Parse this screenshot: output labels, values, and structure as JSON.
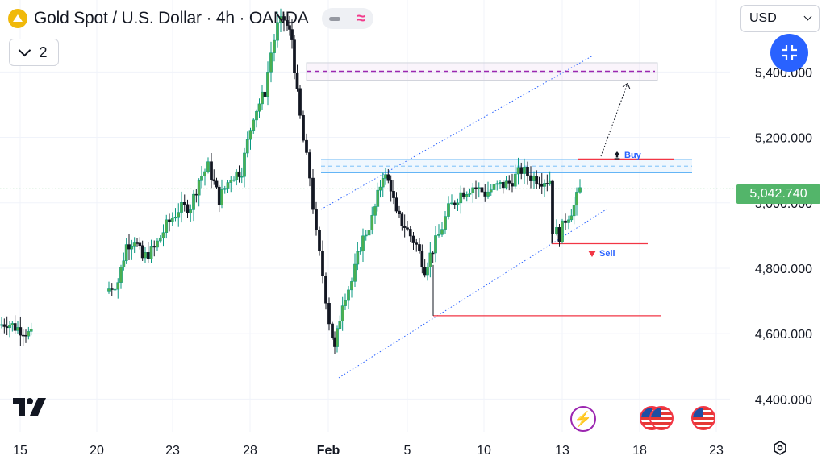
{
  "header": {
    "title": "Gold Spot / U.S. Dollar · 4h · OANDA",
    "indicator_count": "2"
  },
  "currency": {
    "selected": "USD"
  },
  "last_price_label": "5,042.740",
  "labels": {
    "buy": "Buy",
    "sell": "Sell"
  },
  "colors": {
    "up": "#089981",
    "down": "#131722",
    "accent": "#2962ff",
    "red": "#f23645",
    "purple": "#9c27b0",
    "last_price": "#53b56a"
  },
  "icons": [
    "gold-symbol-icon",
    "chevron-down-icon",
    "collapse-icon",
    "flash-icon",
    "us-flag-icon",
    "settings-icon",
    "tradingview-logo-icon"
  ],
  "chart_data": {
    "type": "candlestick",
    "ylim": [
      4300,
      5620
    ],
    "y_ticks": [
      {
        "value": 5400,
        "label": "5,400.000"
      },
      {
        "value": 5200,
        "label": "5,200.000"
      },
      {
        "value": 5000,
        "label": "5,000.000"
      },
      {
        "value": 4800,
        "label": "4,800.000"
      },
      {
        "value": 4600,
        "label": "4,600.000"
      },
      {
        "value": 4400,
        "label": "4,400.000"
      }
    ],
    "x_ticks": [
      {
        "label": "15",
        "x": 25
      },
      {
        "label": "20",
        "x": 120
      },
      {
        "label": "23",
        "x": 214
      },
      {
        "label": "28",
        "x": 310
      },
      {
        "label": "Feb",
        "x": 407,
        "bold": true
      },
      {
        "label": "5",
        "x": 505
      },
      {
        "label": "10",
        "x": 600
      },
      {
        "label": "13",
        "x": 697
      },
      {
        "label": "18",
        "x": 793
      },
      {
        "label": "23",
        "x": 888
      }
    ],
    "last_price": 5042.74,
    "anchors": [
      [
        135,
        4730
      ],
      [
        150,
        4760
      ],
      [
        160,
        4870
      ],
      [
        170,
        4890
      ],
      [
        180,
        4830
      ],
      [
        195,
        4860
      ],
      [
        210,
        4930
      ],
      [
        225,
        4980
      ],
      [
        240,
        4990
      ],
      [
        250,
        5070
      ],
      [
        262,
        5110
      ],
      [
        275,
        5010
      ],
      [
        290,
        5080
      ],
      [
        303,
        5100
      ],
      [
        318,
        5270
      ],
      [
        332,
        5340
      ],
      [
        340,
        5460
      ],
      [
        348,
        5540
      ],
      [
        356,
        5560
      ],
      [
        365,
        5500
      ],
      [
        372,
        5330
      ],
      [
        380,
        5190
      ],
      [
        388,
        5080
      ],
      [
        396,
        4900
      ],
      [
        404,
        4780
      ],
      [
        412,
        4640
      ],
      [
        418,
        4550
      ],
      [
        428,
        4700
      ],
      [
        440,
        4760
      ],
      [
        450,
        4870
      ],
      [
        465,
        4950
      ],
      [
        478,
        5090
      ],
      [
        488,
        5050
      ],
      [
        495,
        4960
      ],
      [
        505,
        4930
      ],
      [
        520,
        4870
      ],
      [
        530,
        4800
      ],
      [
        540,
        4860
      ],
      [
        548,
        4900
      ],
      [
        560,
        4980
      ],
      [
        575,
        5030
      ],
      [
        590,
        5050
      ],
      [
        605,
        5030
      ],
      [
        620,
        5050
      ],
      [
        635,
        5060
      ],
      [
        650,
        5100
      ],
      [
        662,
        5080
      ],
      [
        675,
        5070
      ],
      [
        685,
        5070
      ],
      [
        690,
        4920
      ],
      [
        697,
        4900
      ],
      [
        705,
        4950
      ],
      [
        715,
        4990
      ],
      [
        723,
        5040
      ]
    ],
    "left_cluster": [
      [
        2,
        4625
      ],
      [
        12,
        4635
      ],
      [
        22,
        4620
      ],
      [
        32,
        4610
      ],
      [
        42,
        4595
      ]
    ],
    "levels": [
      {
        "name": "target-dashed",
        "value": 5402,
        "x1": 380,
        "x2": 812,
        "color": "#9c27b0",
        "dash": "6 4"
      },
      {
        "name": "upper-band-top",
        "value": 5132,
        "x1": 398,
        "x2": 858,
        "color": "#64b5f6",
        "dash": ""
      },
      {
        "name": "upper-band-mid",
        "value": 5112,
        "x1": 398,
        "x2": 858,
        "color": "#90caf9",
        "dash": "5 4"
      },
      {
        "name": "upper-band-bot",
        "value": 5092,
        "x1": 398,
        "x2": 858,
        "color": "#64b5f6",
        "dash": ""
      },
      {
        "name": "buy-level",
        "value": 5134,
        "x1": 716,
        "x2": 836,
        "color": "#f23645",
        "dash": ""
      },
      {
        "name": "sell-level",
        "value": 4875,
        "x1": 684,
        "x2": 803,
        "color": "#f23645",
        "dash": ""
      },
      {
        "name": "low-level",
        "value": 4655,
        "x1": 537,
        "x2": 820,
        "color": "#f23645",
        "dash": ""
      }
    ],
    "channel": {
      "upper": [
        [
          398,
          4980
        ],
        [
          735,
          5450
        ]
      ],
      "lower": [
        [
          420,
          4465
        ],
        [
          755,
          4985
        ]
      ]
    },
    "target_box": {
      "x1": 380,
      "x2": 815,
      "y1": 5428,
      "y2": 5375
    },
    "projection": [
      [
        745,
        5142
      ],
      [
        778,
        5365
      ]
    ]
  }
}
